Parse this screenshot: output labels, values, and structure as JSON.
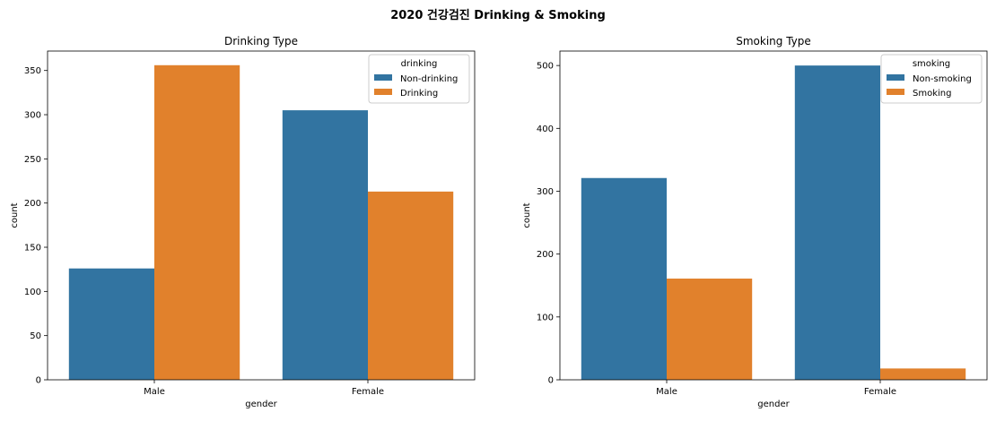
{
  "figure": {
    "title": "2020 건강검진 Drinking & Smoking"
  },
  "colors": {
    "blue": "#3274a1",
    "orange": "#e1812c"
  },
  "chart_data": [
    {
      "type": "bar",
      "title": "Drinking Type",
      "xlabel": "gender",
      "ylabel": "count",
      "categories": [
        "Male",
        "Female"
      ],
      "ylim": [
        0,
        372
      ],
      "yticks": [
        0,
        50,
        100,
        150,
        200,
        250,
        300,
        350
      ],
      "legend_title": "drinking",
      "legend_position": "top-right",
      "series": [
        {
          "name": "Non-drinking",
          "color": "#3274a1",
          "values": [
            126,
            305
          ]
        },
        {
          "name": "Drinking",
          "color": "#e1812c",
          "values": [
            356,
            213
          ]
        }
      ]
    },
    {
      "type": "bar",
      "title": "Smoking Type",
      "xlabel": "gender",
      "ylabel": "count",
      "categories": [
        "Male",
        "Female"
      ],
      "ylim": [
        0,
        523
      ],
      "yticks": [
        0,
        100,
        200,
        300,
        400,
        500
      ],
      "legend_title": "smoking",
      "legend_position": "top-right",
      "series": [
        {
          "name": "Non-smoking",
          "color": "#3274a1",
          "values": [
            321,
            500
          ]
        },
        {
          "name": "Smoking",
          "color": "#e1812c",
          "values": [
            161,
            18
          ]
        }
      ]
    }
  ]
}
